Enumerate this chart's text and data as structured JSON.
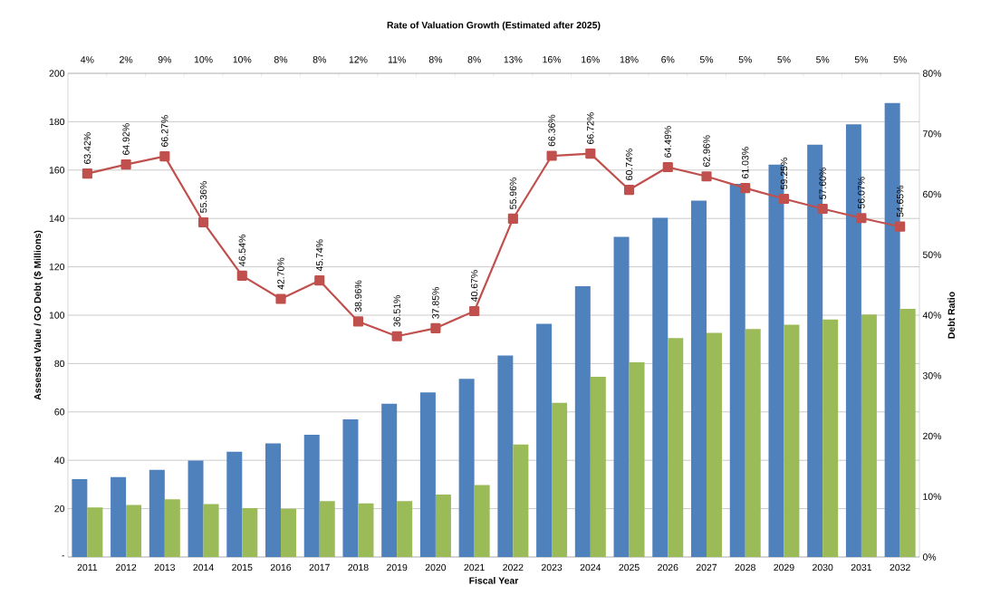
{
  "chart_data": {
    "type": "bar",
    "title": "Rate of Valuation Growth (Estimated after 2025)",
    "xlabel": "Fiscal Year",
    "ylabel": "Assessed Value / GO Debt ($ Millions)",
    "y2label": "Debt Ratio",
    "categories": [
      "2011",
      "2012",
      "2013",
      "2014",
      "2015",
      "2016",
      "2017",
      "2018",
      "2019",
      "2020",
      "2021",
      "2022",
      "2023",
      "2024",
      "2025",
      "2026",
      "2027",
      "2028",
      "2029",
      "2030",
      "2031",
      "2032"
    ],
    "series": [
      {
        "color": "#4f81bd",
        "values": [
          32.2,
          33.0,
          36.0,
          39.9,
          43.5,
          47.0,
          50.6,
          56.9,
          63.4,
          68.1,
          73.7,
          83.3,
          96.4,
          112.0,
          132.4,
          140.3,
          147.4,
          154.3,
          162.3,
          170.5,
          178.9,
          187.7
        ]
      },
      {
        "color": "#9bbb59",
        "values": [
          20.5,
          21.5,
          23.9,
          21.9,
          20.2,
          19.9,
          23.1,
          22.2,
          23.1,
          25.8,
          29.8,
          46.5,
          63.8,
          74.5,
          80.5,
          90.5,
          92.7,
          94.3,
          96.1,
          98.2,
          100.3,
          102.6
        ]
      },
      {
        "type": "line",
        "axis": "y2",
        "color": "#c0504d",
        "marker": "square",
        "values": [
          63.42,
          64.92,
          66.27,
          55.36,
          46.54,
          42.7,
          45.74,
          38.96,
          36.51,
          37.85,
          40.67,
          55.96,
          66.36,
          66.72,
          60.74,
          64.49,
          62.96,
          61.03,
          59.25,
          57.6,
          56.07,
          54.65
        ],
        "value_labels": [
          "63.42%",
          "64.92%",
          "66.27%",
          "55.36%",
          "46.54%",
          "42.70%",
          "45.74%",
          "38.96%",
          "36.51%",
          "37.85%",
          "40.67%",
          "55.96%",
          "66.36%",
          "66.72%",
          "60.74%",
          "64.49%",
          "62.96%",
          "61.03%",
          "59.25%",
          "57.60%",
          "56.07%",
          "54.65%"
        ]
      }
    ],
    "ylim": [
      0,
      200
    ],
    "yticks": [
      {
        "value": 0,
        "label": "-"
      },
      20,
      40,
      60,
      80,
      100,
      120,
      140,
      160,
      180,
      200
    ],
    "y2lim": [
      0,
      80
    ],
    "y2ticks": [
      {
        "value": 0,
        "label": "0%"
      },
      {
        "value": 10,
        "label": "10%"
      },
      {
        "value": 20,
        "label": "20%"
      },
      {
        "value": 30,
        "label": "30%"
      },
      {
        "value": 40,
        "label": "40%"
      },
      {
        "value": 50,
        "label": "50%"
      },
      {
        "value": 60,
        "label": "60%"
      },
      {
        "value": 70,
        "label": "70%"
      },
      {
        "value": 80,
        "label": "80%"
      }
    ],
    "grid": "y",
    "annotations": [
      "4%",
      "2%",
      "9%",
      "10%",
      "10%",
      "8%",
      "8%",
      "12%",
      "11%",
      "8%",
      "8%",
      "13%",
      "16%",
      "16%",
      "18%",
      "6%",
      "5%",
      "5%",
      "5%",
      "5%",
      "5%",
      "5%"
    ]
  }
}
